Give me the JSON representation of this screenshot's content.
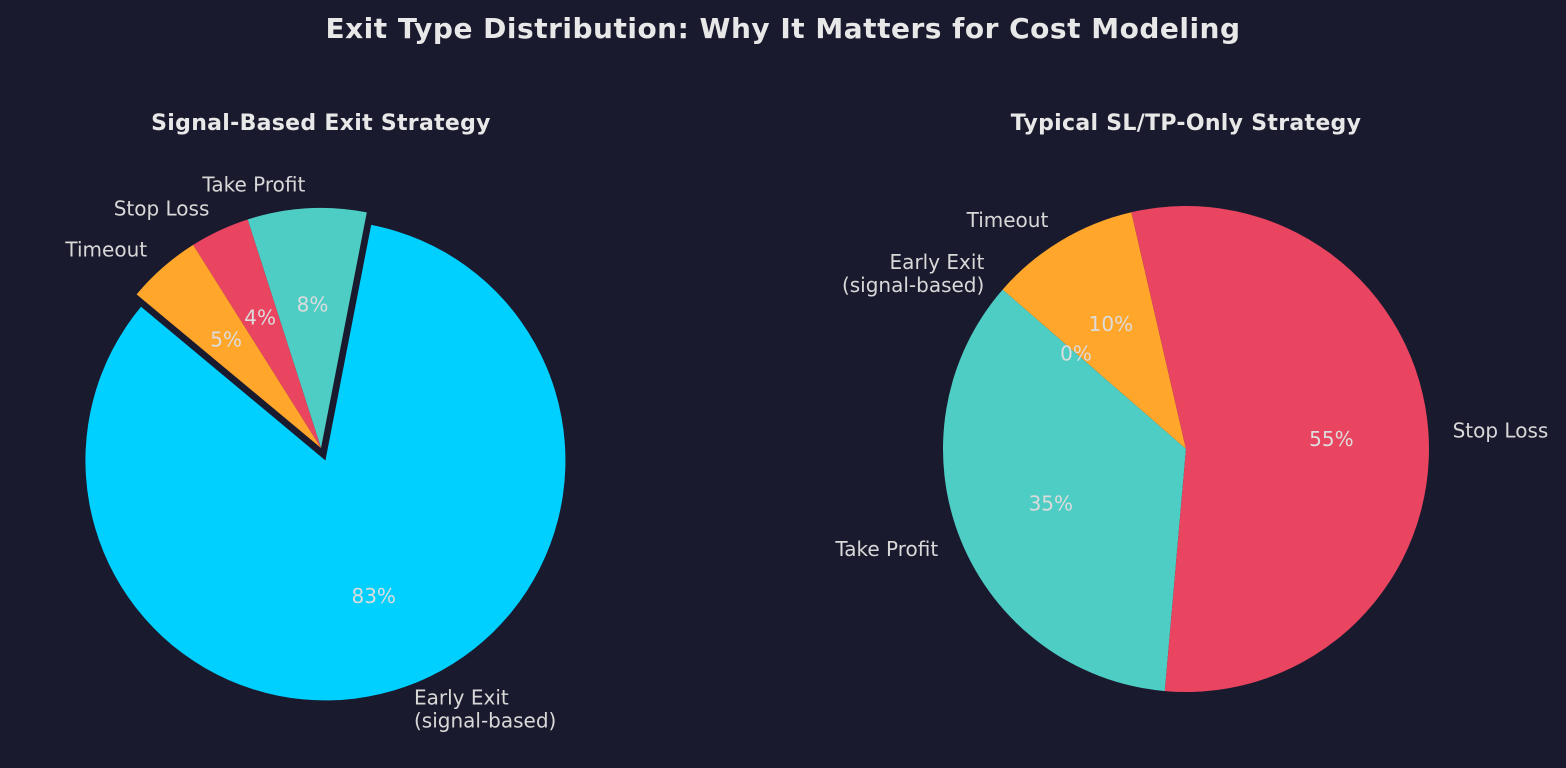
{
  "page": {
    "title": "Exit Type Distribution: Why It Matters for Cost Modeling",
    "background_color": "#1a1a2e",
    "title_color": "#e8e8e8",
    "label_color": "#d8d8d8",
    "pct_color": "#dcdcdc"
  },
  "chart_data": [
    {
      "type": "pie",
      "title": "Signal-Based Exit Strategy",
      "startangle": 79,
      "counterclock": true,
      "legend": "none",
      "labeldistance": 1.1,
      "pctdistance": 0.6,
      "slices": [
        {
          "label": "Take Profit",
          "value": 8,
          "pct_label": "8%",
          "color": "#4ecdc4",
          "explode": 0
        },
        {
          "label": "Stop Loss",
          "value": 4,
          "pct_label": "4%",
          "color": "#e94560",
          "explode": 0
        },
        {
          "label": "Timeout",
          "value": 5,
          "pct_label": "5%",
          "color": "#ffa62b",
          "explode": 0
        },
        {
          "label": "Early Exit\n(signal-based)",
          "value": 83,
          "pct_label": "83%",
          "color": "#00d0ff",
          "explode": 0.055
        }
      ]
    },
    {
      "type": "pie",
      "title": "Typical SL/TP-Only Strategy",
      "startangle": 103,
      "counterclock": true,
      "legend": "none",
      "labeldistance": 1.1,
      "pctdistance": 0.6,
      "slices": [
        {
          "label": "Timeout",
          "value": 10,
          "pct_label": "10%",
          "color": "#ffa62b",
          "explode": 0
        },
        {
          "label": "Early Exit\n(signal-based)",
          "value": 0,
          "pct_label": "0%",
          "color": "#00d0ff",
          "explode": 0
        },
        {
          "label": "Take Profit",
          "value": 35,
          "pct_label": "35%",
          "color": "#4ecdc4",
          "explode": 0
        },
        {
          "label": "Stop Loss",
          "value": 55,
          "pct_label": "55%",
          "color": "#e94560",
          "explode": 0
        }
      ]
    }
  ]
}
